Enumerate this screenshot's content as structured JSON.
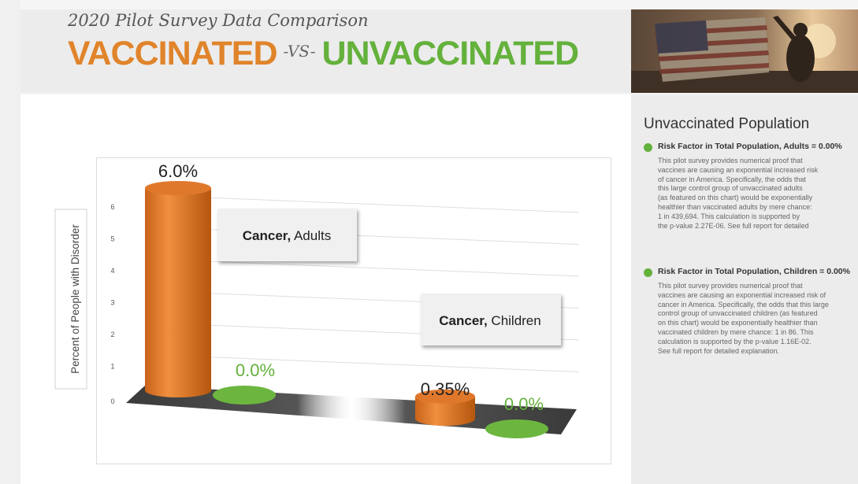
{
  "header": {
    "subtitle": "2020 Pilot Survey Data Comparison",
    "title_vaccinated": "VACCINATED",
    "title_vs": "-VS-",
    "title_unvaccinated": "UNVACCINATED"
  },
  "colors": {
    "vaccinated": "#e0842b",
    "unvaccinated": "#64b13c"
  },
  "chart_data": {
    "type": "bar",
    "ylabel": "Percent of People with Disorder",
    "ylim": [
      0,
      6
    ],
    "yticks": [
      "0",
      "1",
      "2",
      "3",
      "4",
      "5",
      "6"
    ],
    "categories": [
      {
        "name": "Cancer,",
        "suffix": " Adults"
      },
      {
        "name": "Cancer,",
        "suffix": " Children"
      }
    ],
    "series": [
      {
        "values": [
          6.0,
          0.35
        ],
        "labels": [
          "6.0%",
          "0.35%"
        ]
      },
      {
        "values": [
          0.0,
          0.0
        ],
        "labels": [
          "0.0%",
          "0.0%"
        ]
      }
    ]
  },
  "sidebar": {
    "heading": "Unvaccinated Population",
    "items": [
      {
        "label": "Risk Factor in Total Population, Adults = 0.00%",
        "lines": [
          "This pilot survey provides numerical proof that",
          "vaccines are causing an exponential increased risk",
          "of cancer in America. Specifically, the odds that",
          "this large control group of unvaccinated adults",
          "(as featured on this chart) would be exponentially",
          "healthier than vaccinated adults by mere chance:",
          "1 in 439,694. This calculation is supported by",
          "the p-value 2.27E-06. See full report for detailed"
        ]
      },
      {
        "label": "Risk Factor in Total Population, Children = 0.00%",
        "lines": [
          "This pilot survey provides numerical proof that",
          "vaccines are causing an exponential increased risk of",
          "cancer in America. Specifically, the odds that this large",
          "control group of unvaccinated children (as featured",
          "on this chart) would be exponentially healthier than",
          "vaccinated children by mere chance: 1 in 86. This",
          "calculation is supported by the p-value 1.16E-02.",
          "See full report for detailed explanation."
        ]
      }
    ]
  }
}
